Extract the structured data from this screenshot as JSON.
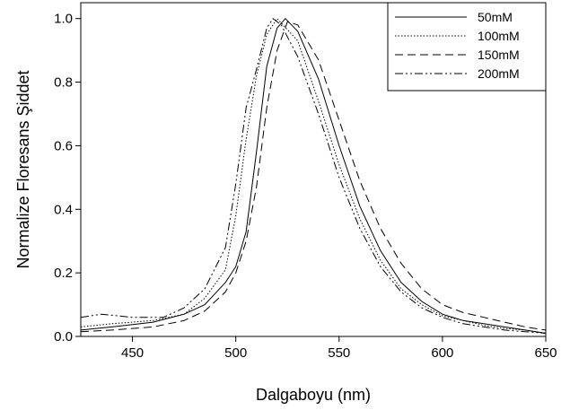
{
  "chart_data": {
    "type": "line",
    "title": "",
    "xlabel": "Dalgaboyu (nm)",
    "ylabel": "Normalize Floresans Şiddet",
    "xlim": [
      425,
      650
    ],
    "ylim": [
      0.0,
      1.05
    ],
    "xticks": [
      450,
      500,
      550,
      600,
      650
    ],
    "yticks": [
      0.0,
      0.2,
      0.4,
      0.6,
      0.8,
      1.0
    ],
    "xtick_labels": [
      "450",
      "500",
      "550",
      "600",
      "650"
    ],
    "ytick_labels": [
      "0.0",
      "0.2",
      "0.4",
      "0.6",
      "0.8",
      "1.0"
    ],
    "grid": false,
    "legend_position": "top-right",
    "line_color": "#000000",
    "series": [
      {
        "name": "50mM",
        "dash": "solid",
        "x": [
          425,
          440,
          460,
          475,
          485,
          495,
          500,
          505,
          510,
          515,
          520,
          524,
          530,
          540,
          550,
          560,
          570,
          580,
          590,
          600,
          610,
          620,
          630,
          640,
          650
        ],
        "y": [
          0.02,
          0.03,
          0.045,
          0.07,
          0.1,
          0.17,
          0.22,
          0.33,
          0.58,
          0.85,
          0.97,
          1.0,
          0.96,
          0.81,
          0.6,
          0.41,
          0.27,
          0.17,
          0.11,
          0.07,
          0.05,
          0.04,
          0.03,
          0.02,
          0.01
        ]
      },
      {
        "name": "100mM",
        "dash": "dotted",
        "x": [
          425,
          440,
          460,
          475,
          485,
          495,
          500,
          505,
          510,
          515,
          520,
          530,
          540,
          550,
          560,
          570,
          580,
          590,
          600,
          610,
          620,
          630,
          640,
          650
        ],
        "y": [
          0.03,
          0.04,
          0.05,
          0.07,
          0.12,
          0.21,
          0.38,
          0.62,
          0.82,
          0.95,
          1.0,
          0.93,
          0.74,
          0.54,
          0.37,
          0.24,
          0.15,
          0.1,
          0.065,
          0.05,
          0.035,
          0.025,
          0.02,
          0.01
        ]
      },
      {
        "name": "150mM",
        "dash": "dashed",
        "x": [
          425,
          440,
          460,
          475,
          485,
          495,
          500,
          505,
          510,
          515,
          520,
          525,
          530,
          540,
          550,
          560,
          570,
          580,
          590,
          600,
          610,
          620,
          630,
          640,
          650
        ],
        "y": [
          0.015,
          0.02,
          0.03,
          0.05,
          0.08,
          0.14,
          0.2,
          0.3,
          0.47,
          0.72,
          0.9,
          0.99,
          0.98,
          0.87,
          0.68,
          0.49,
          0.34,
          0.23,
          0.15,
          0.1,
          0.075,
          0.06,
          0.045,
          0.03,
          0.02
        ]
      },
      {
        "name": "200mM",
        "dash": "dash-dot-dot",
        "x": [
          425,
          435,
          450,
          465,
          475,
          485,
          495,
          500,
          505,
          510,
          515,
          518,
          522,
          530,
          540,
          550,
          560,
          570,
          580,
          590,
          600,
          610,
          620,
          630,
          640,
          650
        ],
        "y": [
          0.06,
          0.07,
          0.06,
          0.06,
          0.09,
          0.15,
          0.28,
          0.48,
          0.72,
          0.84,
          0.97,
          1.0,
          0.98,
          0.88,
          0.7,
          0.5,
          0.34,
          0.22,
          0.14,
          0.09,
          0.06,
          0.04,
          0.03,
          0.02,
          0.015,
          0.01
        ]
      }
    ]
  }
}
